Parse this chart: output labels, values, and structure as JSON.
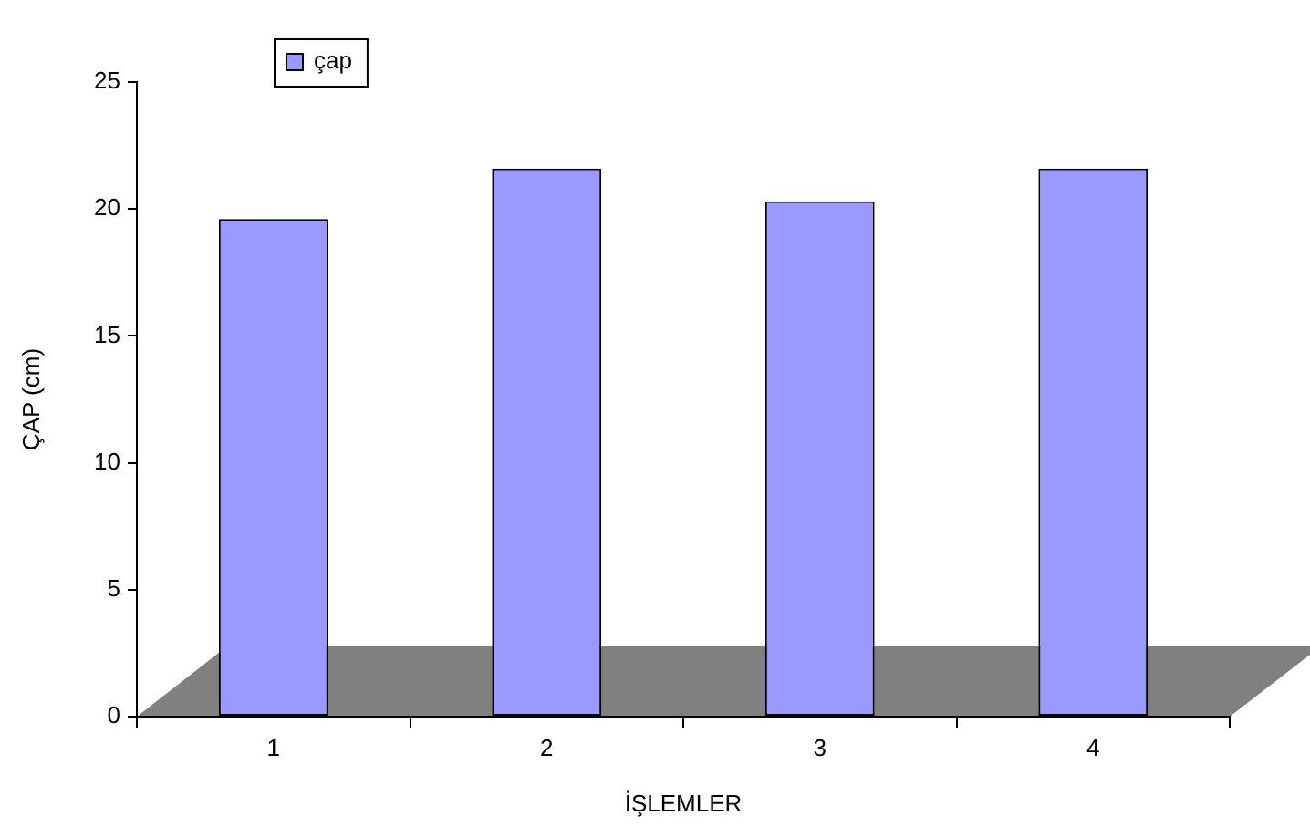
{
  "chart_data": {
    "type": "bar",
    "xlabel": "İŞLEMLER",
    "ylabel": "ÇAP (cm)",
    "categories": [
      "1",
      "2",
      "3",
      "4"
    ],
    "series": [
      {
        "name": "çap",
        "color": "#9999ff",
        "values": [
          19.6,
          21.6,
          20.3,
          21.6
        ]
      }
    ],
    "ylim": [
      0,
      25
    ],
    "yticks": [
      0,
      5,
      10,
      15,
      20,
      25
    ],
    "grid": false,
    "legend": "top left"
  }
}
